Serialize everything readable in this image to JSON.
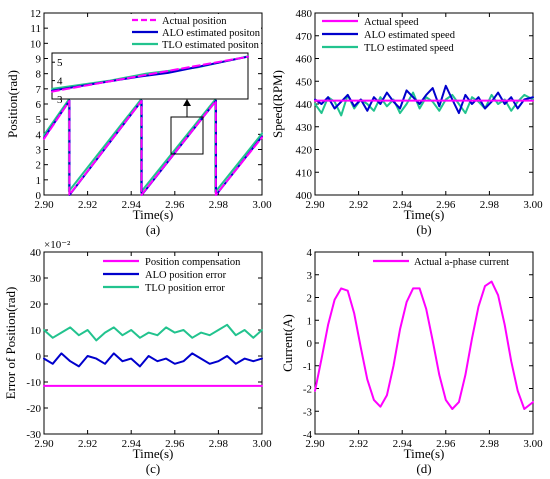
{
  "colors": {
    "magenta": "#ff00ff",
    "blue": "#0000cc",
    "green": "#22c38e",
    "black": "#000000"
  },
  "chart_data": [
    {
      "id": "a",
      "type": "line",
      "caption": "(a)",
      "xlabel": "Time(s)",
      "ylabel": "Position(rad)",
      "xlim": [
        2.9,
        3.0
      ],
      "ylim": [
        0,
        12
      ],
      "xticks": [
        2.9,
        2.92,
        2.94,
        2.96,
        2.98,
        3.0
      ],
      "xtick_labels": [
        "2.90",
        "2.92",
        "2.94",
        "2.96",
        "2.98",
        "3.00"
      ],
      "yticks": [
        0,
        1,
        2,
        3,
        4,
        5,
        6,
        7,
        8,
        9,
        10,
        11,
        12
      ],
      "ytick_labels": [
        "0",
        "1",
        "2",
        "3",
        "4",
        "5",
        "6",
        "7",
        "8",
        "9",
        "10",
        "11",
        "12"
      ],
      "legend": "top-right",
      "series": [
        {
          "name": "Actual position",
          "color": "#ff00ff",
          "dash": "dashed",
          "x": [
            2.9,
            2.9116,
            2.9116,
            2.9447,
            2.9447,
            2.9788,
            2.9788,
            3.0
          ],
          "y": [
            3.7,
            6.2,
            0,
            6.2,
            0,
            6.2,
            0,
            3.8
          ]
        },
        {
          "name": "ALO estimated positon",
          "color": "#0000cc",
          "x": [
            2.9,
            2.9117,
            2.9117,
            2.9448,
            2.9448,
            2.9789,
            2.9789,
            3.0
          ],
          "y": [
            3.75,
            6.22,
            0,
            6.22,
            0,
            6.22,
            0,
            3.85
          ]
        },
        {
          "name": "TLO estimated positon",
          "color": "#22c38e",
          "x": [
            2.9,
            2.9114,
            2.9114,
            2.9445,
            2.9445,
            2.9786,
            2.9786,
            3.0
          ],
          "y": [
            3.95,
            6.3,
            0.25,
            6.3,
            0.2,
            6.3,
            0.2,
            4.05
          ]
        }
      ],
      "inset": {
        "xlim": [
          2.96,
          2.9735
        ],
        "ylim": [
          3,
          5.5
        ],
        "yticks": [
          3,
          4,
          5
        ],
        "ytick_labels": [
          "3",
          "4",
          "5"
        ],
        "series": [
          {
            "name": "Actual position",
            "x": [
              2.96,
              2.9735
            ],
            "y": [
              3.4,
              5.3
            ]
          },
          {
            "name": "ALO estimated positon",
            "x": [
              2.96,
              2.966,
              2.968,
              2.9735
            ],
            "y": [
              3.45,
              4.22,
              4.42,
              5.3
            ]
          },
          {
            "name": "TLO estimated positon",
            "x": [
              2.96,
              2.964,
              2.9665,
              2.97,
              2.9735
            ],
            "y": [
              3.55,
              4.0,
              4.38,
              4.72,
              5.32
            ]
          }
        ]
      }
    },
    {
      "id": "b",
      "type": "line",
      "caption": "(b)",
      "xlabel": "Time(s)",
      "ylabel": "Speed(RPM)",
      "xlim": [
        2.9,
        3.0
      ],
      "ylim": [
        400,
        480
      ],
      "xticks": [
        2.9,
        2.92,
        2.94,
        2.96,
        2.98,
        3.0
      ],
      "xtick_labels": [
        "2.90",
        "2.92",
        "2.94",
        "2.96",
        "2.98",
        "3.00"
      ],
      "yticks": [
        400,
        410,
        420,
        430,
        440,
        450,
        460,
        470,
        480
      ],
      "ytick_labels": [
        "400",
        "410",
        "420",
        "430",
        "440",
        "450",
        "460",
        "470",
        "480"
      ],
      "legend": "top-left",
      "series": [
        {
          "name": "Actual speed",
          "color": "#ff00ff",
          "x": [
            2.9,
            3.0
          ],
          "y": [
            441.5,
            441.5
          ]
        },
        {
          "name": "ALO estimated speed",
          "color": "#0000cc",
          "x": [
            2.9,
            2.903,
            2.906,
            2.909,
            2.912,
            2.915,
            2.918,
            2.921,
            2.924,
            2.927,
            2.93,
            2.933,
            2.936,
            2.939,
            2.942,
            2.945,
            2.948,
            2.951,
            2.954,
            2.957,
            2.96,
            2.963,
            2.966,
            2.969,
            2.972,
            2.975,
            2.978,
            2.981,
            2.984,
            2.987,
            2.99,
            2.993,
            2.996,
            3.0
          ],
          "y": [
            442,
            440,
            443,
            438,
            441,
            444,
            439,
            442,
            437,
            443,
            440,
            445,
            441,
            438,
            446,
            443,
            440,
            444,
            447,
            439,
            448,
            442,
            436,
            444,
            440,
            443,
            438,
            441,
            445,
            440,
            443,
            438,
            442,
            443
          ]
        },
        {
          "name": "TLO estimated speed",
          "color": "#22c38e",
          "x": [
            2.9,
            2.903,
            2.906,
            2.909,
            2.912,
            2.915,
            2.918,
            2.921,
            2.924,
            2.927,
            2.93,
            2.933,
            2.936,
            2.939,
            2.942,
            2.945,
            2.948,
            2.951,
            2.954,
            2.957,
            2.96,
            2.963,
            2.966,
            2.969,
            2.972,
            2.975,
            2.978,
            2.981,
            2.984,
            2.987,
            2.99,
            2.993,
            2.996,
            3.0
          ],
          "y": [
            440,
            436,
            443,
            441,
            435,
            444,
            438,
            442,
            440,
            437,
            443,
            439,
            442,
            436,
            440,
            445,
            438,
            443,
            441,
            437,
            442,
            444,
            440,
            436,
            443,
            441,
            438,
            444,
            440,
            442,
            437,
            441,
            444,
            442
          ]
        }
      ]
    },
    {
      "id": "c",
      "type": "line",
      "caption": "(c)",
      "xlabel": "Time(s)",
      "ylabel": "Error of Position(rad)",
      "multiplier": "×10⁻²",
      "xlim": [
        2.9,
        3.0
      ],
      "ylim": [
        -30,
        40
      ],
      "xticks": [
        2.9,
        2.92,
        2.94,
        2.96,
        2.98,
        3.0
      ],
      "xtick_labels": [
        "2.90",
        "2.92",
        "2.94",
        "2.96",
        "2.98",
        "3.00"
      ],
      "yticks": [
        -30,
        -20,
        -10,
        0,
        10,
        20,
        30,
        40
      ],
      "ytick_labels": [
        "-30",
        "-20",
        "-10",
        "0",
        "10",
        "20",
        "30",
        "40"
      ],
      "legend": "top-right",
      "series": [
        {
          "name": "Position compensation",
          "color": "#ff00ff",
          "x": [
            2.9,
            3.0
          ],
          "y": [
            -11.5,
            -11.5
          ]
        },
        {
          "name": "ALO position error",
          "color": "#0000cc",
          "x": [
            2.9,
            2.904,
            2.908,
            2.912,
            2.916,
            2.92,
            2.924,
            2.928,
            2.932,
            2.936,
            2.94,
            2.944,
            2.948,
            2.952,
            2.956,
            2.96,
            2.964,
            2.968,
            2.972,
            2.976,
            2.98,
            2.984,
            2.988,
            2.992,
            2.996,
            3.0
          ],
          "y": [
            -1,
            -3,
            1,
            -2,
            -4,
            0,
            -1,
            -3,
            1,
            -2,
            -1,
            -4,
            0,
            -2,
            -1,
            -3,
            -2,
            1,
            -1,
            -3,
            -2,
            0,
            -3,
            -1,
            -2,
            -1
          ]
        },
        {
          "name": "TLO position error",
          "color": "#22c38e",
          "x": [
            2.9,
            2.904,
            2.908,
            2.912,
            2.916,
            2.92,
            2.924,
            2.928,
            2.932,
            2.936,
            2.94,
            2.944,
            2.948,
            2.952,
            2.956,
            2.96,
            2.964,
            2.968,
            2.972,
            2.976,
            2.98,
            2.984,
            2.988,
            2.992,
            2.996,
            3.0
          ],
          "y": [
            10,
            7,
            9,
            11,
            8,
            10,
            6,
            9,
            11,
            8,
            10,
            7,
            9,
            8,
            11,
            9,
            10,
            7,
            9,
            8,
            10,
            12,
            8,
            10,
            7,
            10
          ]
        }
      ]
    },
    {
      "id": "d",
      "type": "line",
      "caption": "(d)",
      "xlabel": "Time(s)",
      "ylabel": "Current(A)",
      "xlim": [
        2.9,
        3.0
      ],
      "ylim": [
        -4,
        4
      ],
      "xticks": [
        2.9,
        2.92,
        2.94,
        2.96,
        2.98,
        3.0
      ],
      "xtick_labels": [
        "2.90",
        "2.92",
        "2.94",
        "2.96",
        "2.98",
        "3.00"
      ],
      "yticks": [
        -4,
        -3,
        -2,
        -1,
        0,
        1,
        2,
        3,
        4
      ],
      "ytick_labels": [
        "-4",
        "-3",
        "-2",
        "-1",
        "0",
        "1",
        "2",
        "3",
        "4"
      ],
      "legend": "top-right",
      "series": [
        {
          "name": "Actual a-phase current",
          "color": "#ff00ff",
          "x": [
            2.9,
            2.903,
            2.906,
            2.909,
            2.912,
            2.915,
            2.918,
            2.921,
            2.924,
            2.927,
            2.93,
            2.933,
            2.936,
            2.939,
            2.942,
            2.945,
            2.948,
            2.951,
            2.954,
            2.957,
            2.96,
            2.963,
            2.966,
            2.969,
            2.972,
            2.975,
            2.978,
            2.981,
            2.984,
            2.987,
            2.99,
            2.993,
            2.996,
            3.0
          ],
          "y": [
            -2.1,
            -0.7,
            0.8,
            1.9,
            2.4,
            2.3,
            1.3,
            -0.2,
            -1.6,
            -2.5,
            -2.8,
            -2.3,
            -1.0,
            0.6,
            1.8,
            2.4,
            2.4,
            1.5,
            0.1,
            -1.4,
            -2.5,
            -2.9,
            -2.6,
            -1.4,
            0.2,
            1.6,
            2.5,
            2.7,
            2.1,
            0.8,
            -0.8,
            -2.1,
            -2.9,
            -2.6
          ]
        }
      ]
    }
  ]
}
